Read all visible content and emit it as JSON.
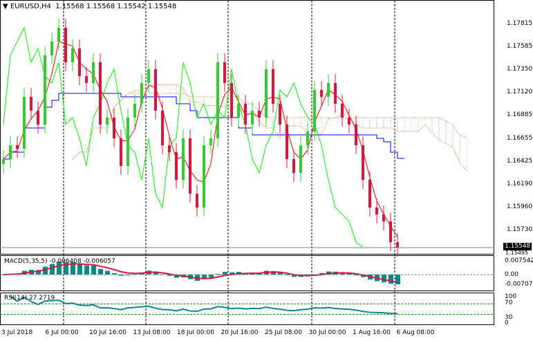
{
  "header": {
    "symbol": "EURUSD,H4",
    "open": "1.15568",
    "high": "1.15568",
    "low": "1.15542",
    "close": "1.15548"
  },
  "price_axis": {
    "ticks": [
      "1.17815",
      "1.17585",
      "1.17350",
      "1.17120",
      "1.16885",
      "1.16655",
      "1.16425",
      "1.16190",
      "1.15960",
      "1.15730"
    ],
    "current": "1.15548",
    "bottom": "1.15495"
  },
  "macd": {
    "label": "MACD(5,35,5) -0.006408 -0.006057",
    "ticks": [
      "0.007542",
      "0.00",
      "-0.007072"
    ]
  },
  "rsi": {
    "label": "RSI(14) 27.2719",
    "ticks": [
      "100",
      "70",
      "30",
      "0"
    ]
  },
  "time_axis": [
    "3 Jul 2018",
    "6 Jul 00:00",
    "10 Jul 16:00",
    "13 Jul 08:00",
    "18 Jul 00:00",
    "20 Jul 16:00",
    "25 Jul 08:00",
    "30 Jul 00:00",
    "1 Aug 16:00",
    "6 Aug 08:00"
  ],
  "colors": {
    "bull": "#32cd32",
    "bear": "#dc143c",
    "ma": "#ff0000",
    "kijun": "#0000ff",
    "chikou": "#00ff00",
    "cloud": "#c0c0c0",
    "cloud_edge": "#f4a460",
    "macd_hist": "#008b8b",
    "macd_signal": "#dc143c",
    "rsi": "#008b8b",
    "levels": "#008000"
  },
  "chart_data": {
    "type": "candlestick",
    "symbol": "EURUSD",
    "timeframe": "H4",
    "ylim": [
      1.1549,
      1.18
    ],
    "closes": [
      1.16443,
      1.16583,
      1.16548,
      1.17073,
      1.16933,
      1.16793,
      1.17493,
      1.17633,
      1.17773,
      1.17423,
      1.17563,
      1.17283,
      1.17213,
      1.17423,
      1.16793,
      1.16863,
      1.16653,
      1.16373,
      1.16863,
      1.17003,
      1.17213,
      1.17353,
      1.16933,
      1.16583,
      1.16513,
      1.16233,
      1.16653,
      1.16093,
      1.15953,
      1.16583,
      1.16653,
      1.17423,
      1.17213,
      1.16863,
      1.17003,
      1.16793,
      1.16933,
      1.16863,
      1.17353,
      1.17003,
      1.16793,
      1.16443,
      1.16303,
      1.16583,
      1.16723,
      1.17143,
      1.17073,
      1.17213,
      1.17003,
      1.16863,
      1.16793,
      1.16583,
      1.16233,
      1.15953,
      1.15883,
      1.15813,
      1.15603,
      1.15548
    ],
    "indicators": [
      "Ichimoku",
      "MA",
      "MACD(5,35,5)",
      "RSI(14)"
    ],
    "rsi_levels": [
      70,
      30
    ],
    "macd_range": [
      -0.007072,
      0.007542
    ]
  }
}
